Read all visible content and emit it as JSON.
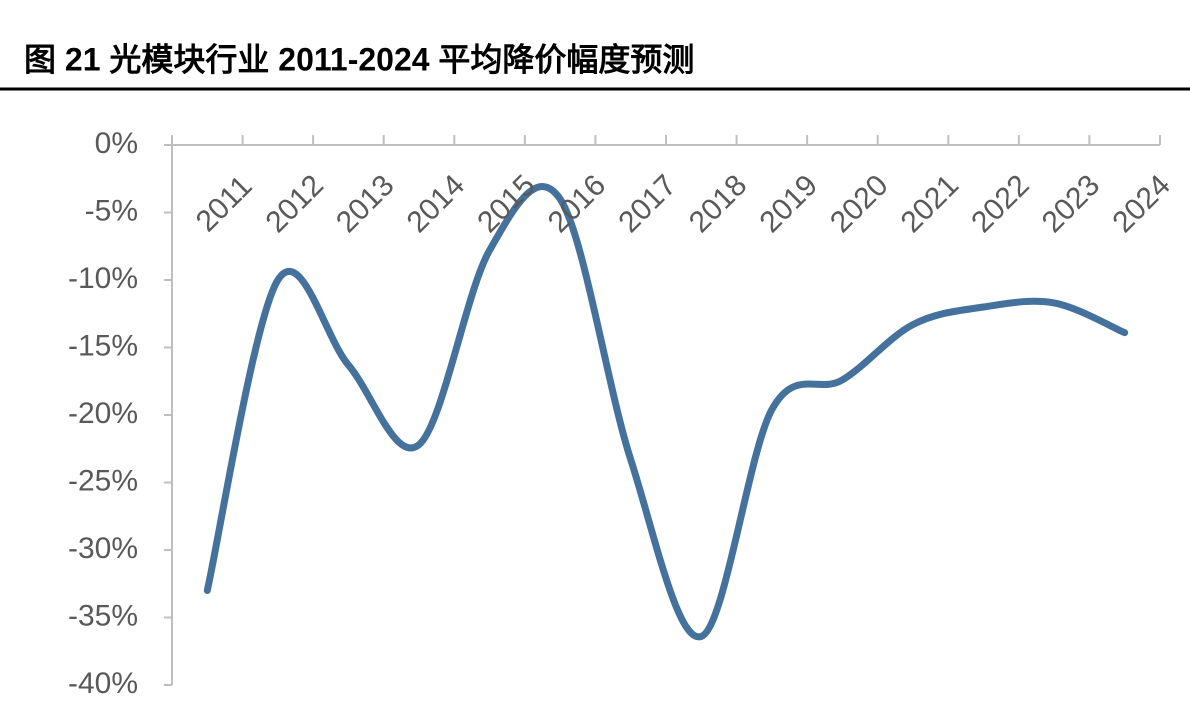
{
  "chart_data": {
    "type": "line",
    "title": "图 21 光模块行业 2011-2024 平均降价幅度预测",
    "categories": [
      "2011",
      "2012",
      "2013",
      "2014",
      "2015",
      "2016",
      "2017",
      "2018",
      "2019",
      "2020",
      "2021",
      "2022",
      "2023",
      "2024"
    ],
    "series": [
      {
        "color": "#45729c",
        "values": [
          -33.0,
          -10.0,
          -16.3,
          -22.2,
          -7.8,
          -4.0,
          -23.3,
          -36.4,
          -19.6,
          -17.4,
          -13.3,
          -12.0,
          -11.7,
          -13.9
        ]
      }
    ],
    "ylim": [
      -40,
      0
    ],
    "yticks": [
      {
        "value": 0,
        "label": "0%"
      },
      {
        "value": -5,
        "label": "-5%"
      },
      {
        "value": -10,
        "label": "-10%"
      },
      {
        "value": -15,
        "label": "-15%"
      },
      {
        "value": -20,
        "label": "-20%"
      },
      {
        "value": -25,
        "label": "-25%"
      },
      {
        "value": -30,
        "label": "-30%"
      },
      {
        "value": -35,
        "label": "-35%"
      },
      {
        "value": -40,
        "label": "-40%"
      }
    ]
  }
}
